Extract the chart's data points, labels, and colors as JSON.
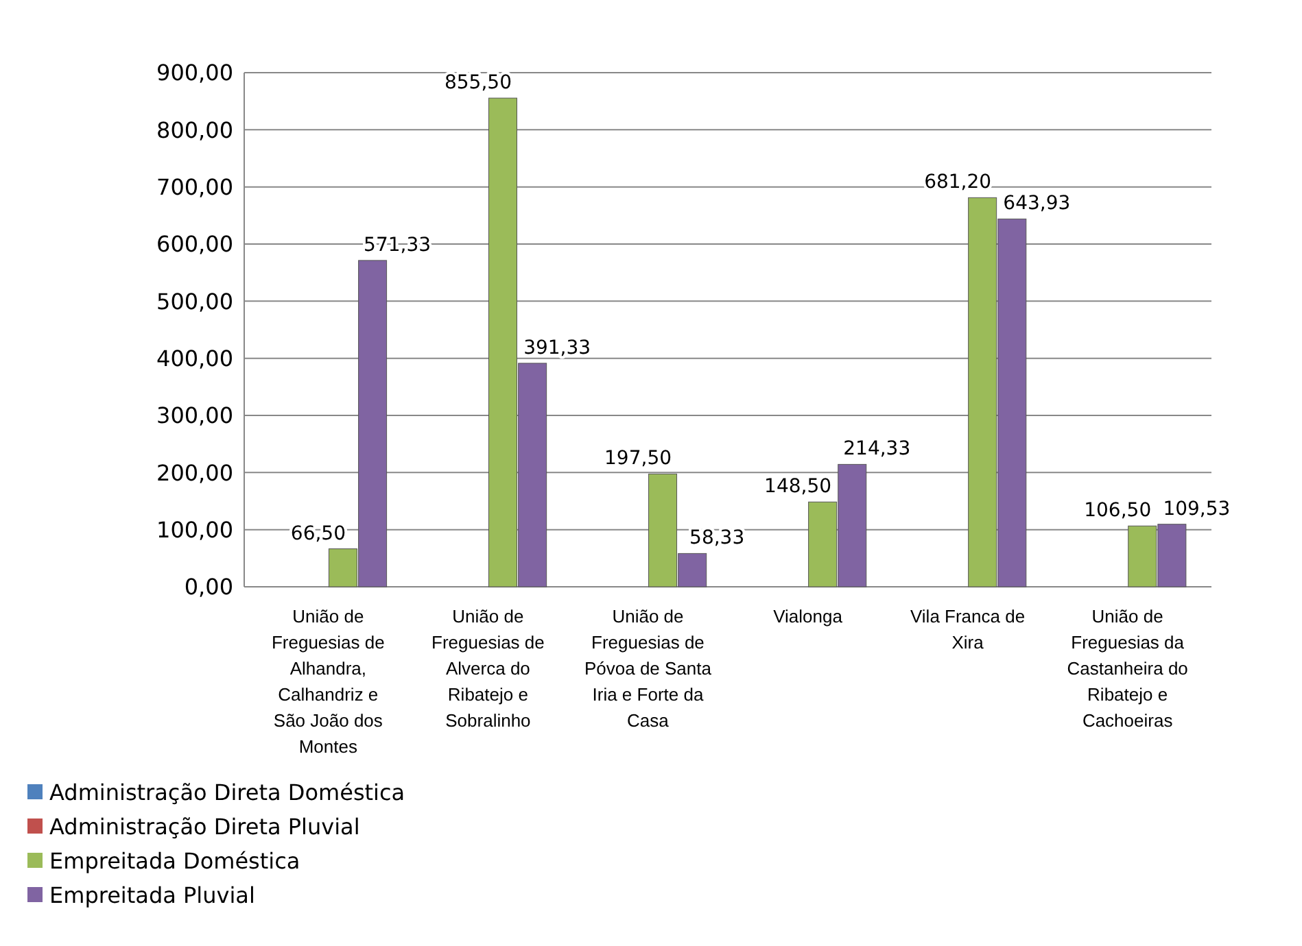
{
  "chart_data": {
    "type": "bar",
    "categories": [
      "União de Freguesias de Alhandra, Calhandriz e São João dos Montes",
      "União de Freguesias de Alverca do Ribatejo e Sobralinho",
      "União de Freguesias de Póvoa de Santa Iria e Forte da Casa",
      "Vialonga",
      "Vila Franca de Xira",
      "União de Freguesias da Castanheira do Ribatejo e Cachoeiras"
    ],
    "series": [
      {
        "name": "Administração Direta Doméstica",
        "color": "#4f81bd",
        "values": [
          null,
          null,
          null,
          null,
          null,
          null
        ]
      },
      {
        "name": "Administração Direta Pluvial",
        "color": "#c0504d",
        "values": [
          null,
          null,
          null,
          null,
          null,
          null
        ]
      },
      {
        "name": "Empreitada Doméstica",
        "color": "#9bbb59",
        "values": [
          66.5,
          855.5,
          197.5,
          148.5,
          681.2,
          106.5
        ],
        "value_labels": [
          "66,50",
          "855,50",
          "197,50",
          "148,50",
          "681,20",
          "106,50"
        ]
      },
      {
        "name": "Empreitada Pluvial",
        "color": "#8064a2",
        "values": [
          571.33,
          391.33,
          58.33,
          214.33,
          643.93,
          109.53
        ],
        "value_labels": [
          "571,33",
          "391,33",
          "58,33",
          "214,33",
          "643,93",
          "109,53"
        ]
      }
    ],
    "ylim": [
      0,
      900
    ],
    "yticks": [
      {
        "value": 0,
        "label": "0,00"
      },
      {
        "value": 100,
        "label": "100,00"
      },
      {
        "value": 200,
        "label": "200,00"
      },
      {
        "value": 300,
        "label": "300,00"
      },
      {
        "value": 400,
        "label": "400,00"
      },
      {
        "value": 500,
        "label": "500,00"
      },
      {
        "value": 600,
        "label": "600,00"
      },
      {
        "value": 700,
        "label": "700,00"
      },
      {
        "value": 800,
        "label": "800,00"
      },
      {
        "value": 900,
        "label": "900,00"
      }
    ],
    "grid": "y",
    "legend": "bottom left"
  }
}
